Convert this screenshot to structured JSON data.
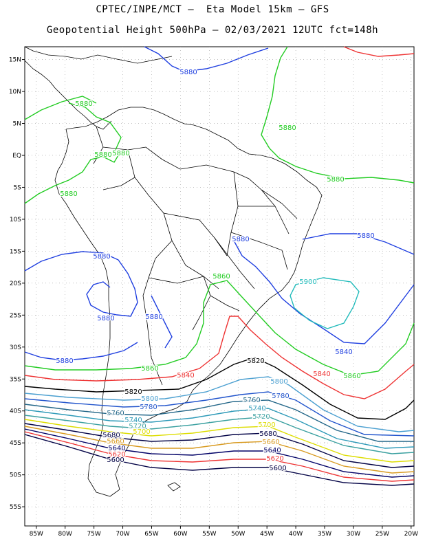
{
  "header": {
    "line1": "CPTEC/INPE/MCT –  Eta Model 15km – GFS",
    "line2": "Geopotential Height 500hPa – 02/03/2021 12UTC fct=148h"
  },
  "lat_labels": [
    "15N",
    "10N",
    "5N",
    "EQ",
    "5S",
    "10S",
    "15S",
    "20S",
    "25S",
    "30S",
    "35S",
    "40S",
    "45S",
    "50S",
    "55S"
  ],
  "lon_labels": [
    "85W",
    "80W",
    "75W",
    "70W",
    "65W",
    "60W",
    "55W",
    "50W",
    "45W",
    "40W",
    "35W",
    "30W",
    "25W",
    "20W"
  ],
  "contour_labels": [
    {
      "text": "5880",
      "color": "#1f3fe0"
    },
    {
      "text": "5880",
      "color": "#22cc22"
    },
    {
      "text": "5880",
      "color": "#22cc22"
    },
    {
      "text": "5880",
      "color": "#22cc22"
    },
    {
      "text": "5880",
      "color": "#22cc22"
    },
    {
      "text": "5880",
      "color": "#22cc22"
    },
    {
      "text": "5880",
      "color": "#22cc22"
    },
    {
      "text": "5880",
      "color": "#1f3fe0"
    },
    {
      "text": "5880",
      "color": "#1f3fe0"
    },
    {
      "text": "5880",
      "color": "#1f3fe0"
    },
    {
      "text": "5880",
      "color": "#1f3fe0"
    },
    {
      "text": "5880",
      "color": "#1f3fe0"
    },
    {
      "text": "5880",
      "color": "#1f3fe0"
    },
    {
      "text": "5900",
      "color": "#22bbbb"
    },
    {
      "text": "5860",
      "color": "#22cc22"
    },
    {
      "text": "5860",
      "color": "#22cc22"
    },
    {
      "text": "5860",
      "color": "#22cc22"
    },
    {
      "text": "5840",
      "color": "#1f3fe0"
    },
    {
      "text": "5840",
      "color": "#ee3333"
    },
    {
      "text": "5840",
      "color": "#ee3333"
    },
    {
      "text": "5820",
      "color": "#000000"
    },
    {
      "text": "5820",
      "color": "#000000"
    },
    {
      "text": "5800",
      "color": "#4a9fd0"
    },
    {
      "text": "5800",
      "color": "#4a9fd0"
    },
    {
      "text": "5780",
      "color": "#2255cc"
    },
    {
      "text": "5780",
      "color": "#2255cc"
    },
    {
      "text": "5760",
      "color": "#226688"
    },
    {
      "text": "5760",
      "color": "#226688"
    },
    {
      "text": "5740",
      "color": "#2e9ab8"
    },
    {
      "text": "5740",
      "color": "#2e9ab8"
    },
    {
      "text": "5720",
      "color": "#3aa0a0"
    },
    {
      "text": "5720",
      "color": "#3aa0a0"
    },
    {
      "text": "5700",
      "color": "#dddd00"
    },
    {
      "text": "5700",
      "color": "#dddd00"
    },
    {
      "text": "5680",
      "color": "#000044"
    },
    {
      "text": "5680",
      "color": "#000044"
    },
    {
      "text": "5660",
      "color": "#d89a20"
    },
    {
      "text": "5660",
      "color": "#d89a20"
    },
    {
      "text": "5640",
      "color": "#000066"
    },
    {
      "text": "5640",
      "color": "#000066"
    },
    {
      "text": "5620",
      "color": "#ee3333"
    },
    {
      "text": "5620",
      "color": "#ee3333"
    },
    {
      "text": "5600",
      "color": "#000044"
    },
    {
      "text": "5600",
      "color": "#000044"
    }
  ]
}
